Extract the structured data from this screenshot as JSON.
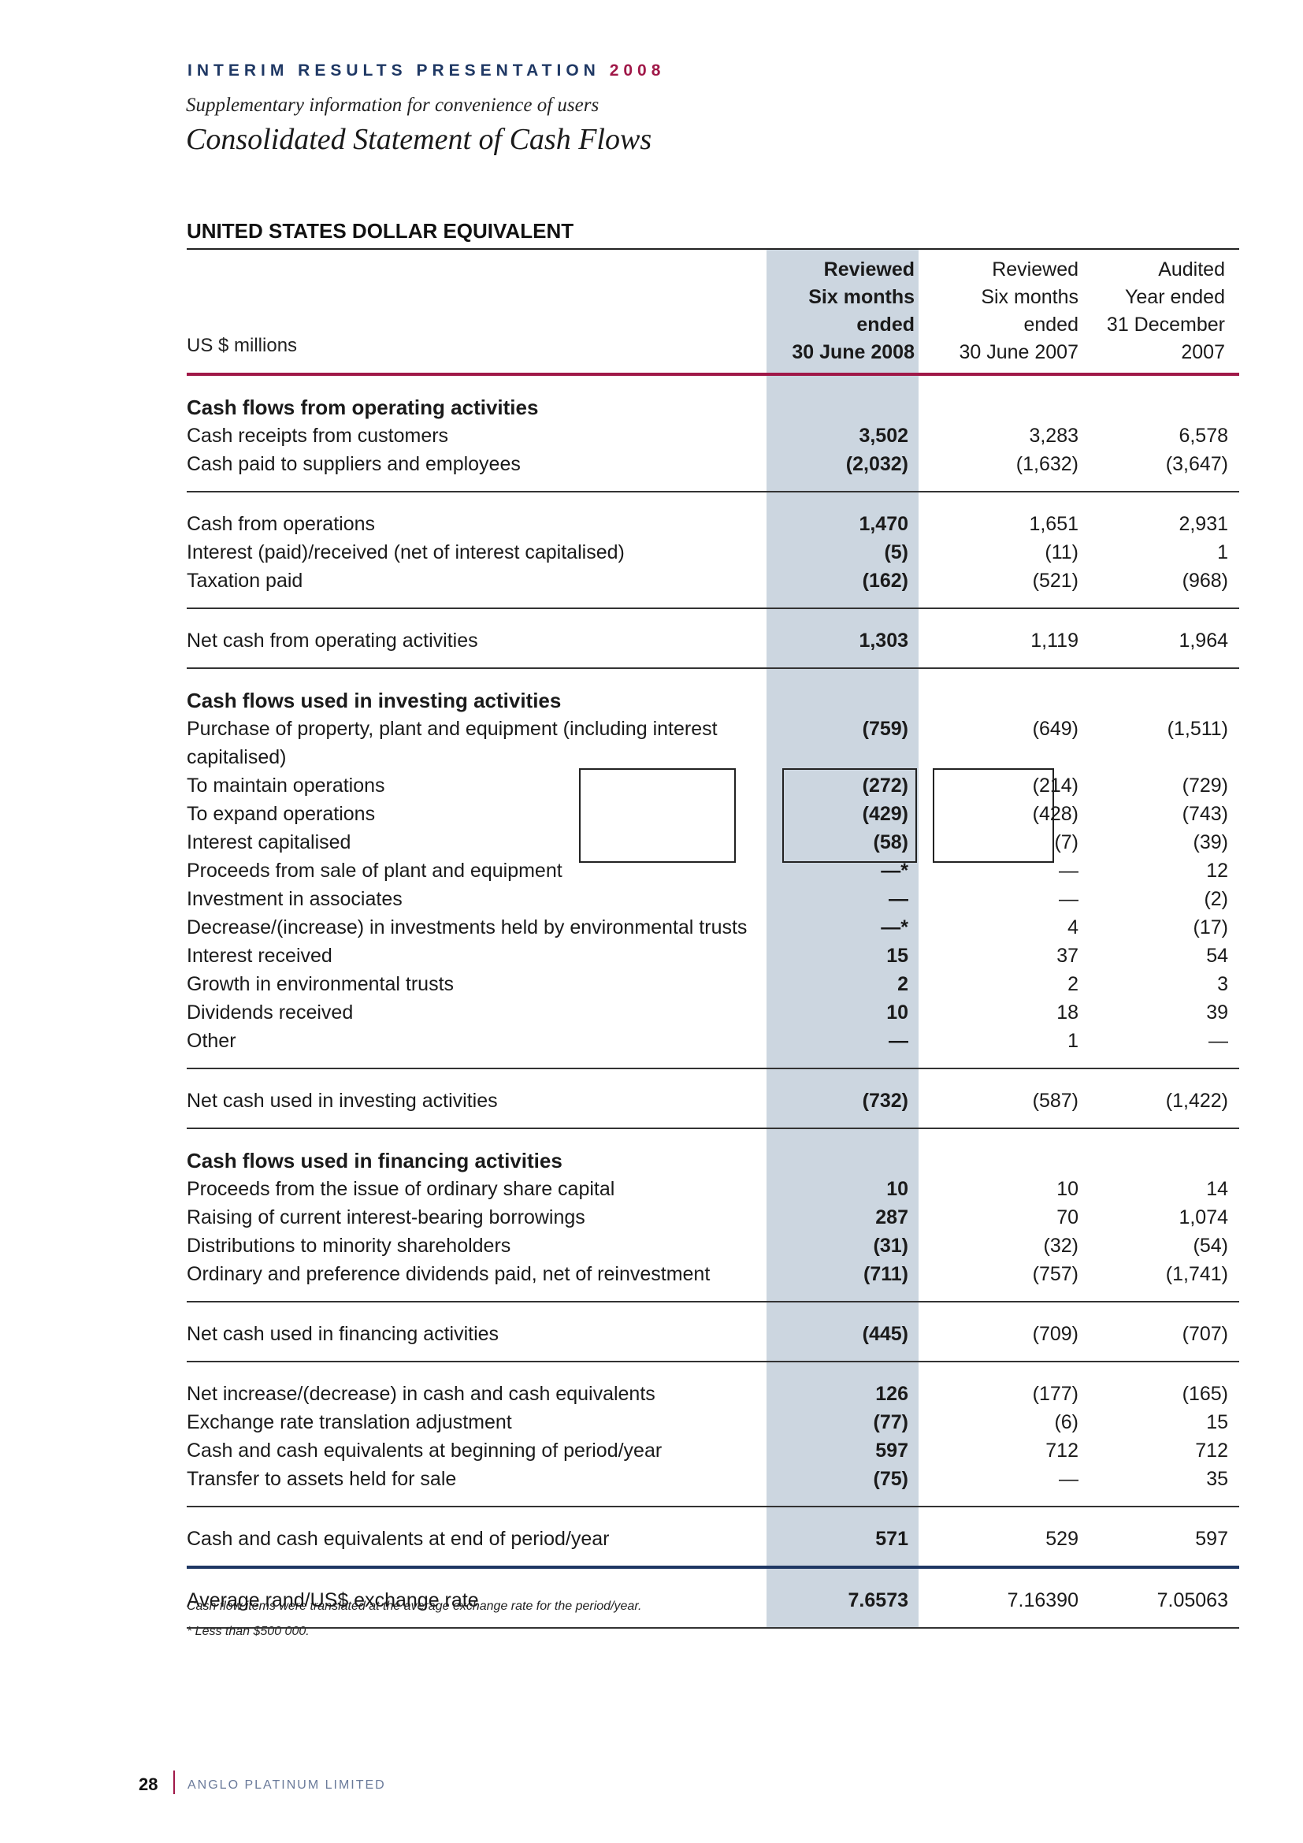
{
  "header": {
    "kicker": "INTERIM RESULTS PRESENTATION",
    "kicker_year": "2008",
    "subtitle": "Supplementary information for convenience of users",
    "title": "Consolidated Statement of Cash Flows"
  },
  "section_heading": "UNITED STATES DOLLAR EQUIVALENT",
  "table_header": {
    "unit": "US $ millions",
    "col1": [
      "Reviewed",
      "Six months",
      "ended",
      "30 June 2008"
    ],
    "col2": [
      "Reviewed",
      "Six months",
      "ended",
      "30 June 2007"
    ],
    "col3": [
      "Audited",
      "Year ended",
      "31 December",
      "2007"
    ]
  },
  "blocks": [
    {
      "rows": [
        {
          "label": "Cash flows from operating activities",
          "bold": true,
          "values": [
            "",
            "",
            ""
          ]
        },
        {
          "label": "Cash receipts from customers",
          "values": [
            "3,502",
            "3,283",
            "6,578"
          ]
        },
        {
          "label": "Cash paid to suppliers and employees",
          "values": [
            "(2,032)",
            "(1,632)",
            "(3,647)"
          ]
        }
      ]
    },
    {
      "rows": [
        {
          "label": "Cash from operations",
          "values": [
            "1,470",
            "1,651",
            "2,931"
          ]
        },
        {
          "label": "Interest (paid)/received (net of interest capitalised)",
          "values": [
            "(5)",
            "(11)",
            "1"
          ]
        },
        {
          "label": "Taxation paid",
          "values": [
            "(162)",
            "(521)",
            "(968)"
          ]
        }
      ]
    },
    {
      "rows": [
        {
          "label": "Net cash from operating activities",
          "values": [
            "1,303",
            "1,119",
            "1,964"
          ]
        }
      ]
    },
    {
      "rows": [
        {
          "label": "Cash flows used in investing activities",
          "bold": true,
          "values": [
            "",
            "",
            ""
          ]
        },
        {
          "label": "Purchase of property, plant and equipment (including interest capitalised)",
          "tall": true,
          "values": [
            "(759)",
            "(649)",
            "(1,511)"
          ]
        },
        {
          "label": "To maintain operations",
          "values": [
            "(272)",
            "(214)",
            "(729)"
          ]
        },
        {
          "label": "To expand operations",
          "values": [
            "(429)",
            "(428)",
            "(743)"
          ]
        },
        {
          "label": "Interest capitalised",
          "values": [
            "(58)",
            "(7)",
            "(39)"
          ]
        },
        {
          "label": "Proceeds from sale of plant and equipment",
          "values": [
            "—*",
            "—",
            "12"
          ]
        },
        {
          "label": "Investment in associates",
          "values": [
            "—",
            "—",
            "(2)"
          ]
        },
        {
          "label": "Decrease/(increase) in investments held by environmental trusts",
          "values": [
            "—*",
            "4",
            "(17)"
          ]
        },
        {
          "label": "Interest received",
          "values": [
            "15",
            "37",
            "54"
          ]
        },
        {
          "label": "Growth in environmental trusts",
          "values": [
            "2",
            "2",
            "3"
          ]
        },
        {
          "label": "Dividends received",
          "values": [
            "10",
            "18",
            "39"
          ]
        },
        {
          "label": "Other",
          "values": [
            "—",
            "1",
            "—"
          ]
        }
      ]
    },
    {
      "rows": [
        {
          "label": "Net cash used in investing activities",
          "values": [
            "(732)",
            "(587)",
            "(1,422)"
          ]
        }
      ]
    },
    {
      "rows": [
        {
          "label": "Cash flows used in financing activities",
          "bold": true,
          "values": [
            "",
            "",
            ""
          ]
        },
        {
          "label": "Proceeds from the issue of ordinary share capital",
          "values": [
            "10",
            "10",
            "14"
          ]
        },
        {
          "label": "Raising of current interest-bearing borrowings",
          "values": [
            "287",
            "70",
            "1,074"
          ]
        },
        {
          "label": "Distributions to minority shareholders",
          "values": [
            "(31)",
            "(32)",
            "(54)"
          ]
        },
        {
          "label": "Ordinary and preference dividends paid, net of reinvestment",
          "values": [
            "(711)",
            "(757)",
            "(1,741)"
          ]
        }
      ]
    },
    {
      "rows": [
        {
          "label": "Net cash used in financing activities",
          "values": [
            "(445)",
            "(709)",
            "(707)"
          ]
        }
      ]
    },
    {
      "rows": [
        {
          "label": "Net increase/(decrease) in cash and cash equivalents",
          "values": [
            "126",
            "(177)",
            "(165)"
          ]
        },
        {
          "label": "Exchange rate translation adjustment",
          "values": [
            "(77)",
            "(6)",
            "15"
          ]
        },
        {
          "label": "Cash and cash equivalents at beginning of period/year",
          "values": [
            "597",
            "712",
            "712"
          ]
        },
        {
          "label": "Transfer to assets held for sale",
          "values": [
            "(75)",
            "—",
            "35"
          ]
        }
      ]
    },
    {
      "rows": [
        {
          "label": "Cash and cash equivalents at end of period/year",
          "values": [
            "571",
            "529",
            "597"
          ]
        }
      ]
    },
    {
      "rows": [
        {
          "label": "Average rand/US$ exchange rate",
          "values": [
            "7.6573",
            "7.16390",
            "7.05063"
          ]
        }
      ]
    }
  ],
  "notes": [
    "Cash flow items were translated at the average exchange rate for the period/year.",
    "* Less than $500 000."
  ],
  "footer": {
    "page_number": "28",
    "company": "ANGLO PLATINUM LIMITED"
  }
}
